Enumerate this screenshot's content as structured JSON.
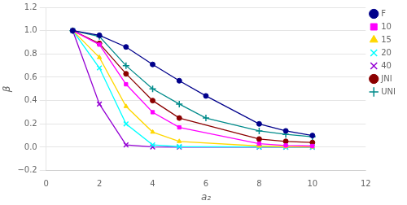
{
  "chart_data": {
    "type": "line",
    "xlabel": "a₂",
    "ylabel": "β",
    "series": [
      {
        "name": "F",
        "color": "#00008B",
        "marker": "circle",
        "x": [
          1,
          2,
          3,
          4,
          5,
          6,
          8,
          9,
          10
        ],
        "values": [
          1.0,
          0.96,
          0.86,
          0.71,
          0.57,
          0.44,
          0.2,
          0.14,
          0.1
        ]
      },
      {
        "name": "10",
        "color": "#FF00FF",
        "marker": "square",
        "x": [
          1,
          2,
          3,
          4,
          5,
          8,
          9,
          10
        ],
        "values": [
          1.0,
          0.88,
          0.54,
          0.3,
          0.17,
          0.03,
          0.015,
          0.01
        ]
      },
      {
        "name": "15",
        "color": "#FFD700",
        "marker": "triangle",
        "x": [
          1,
          2,
          3,
          4,
          5,
          8,
          9,
          10
        ],
        "values": [
          1.0,
          0.77,
          0.35,
          0.13,
          0.05,
          0.01,
          0.005,
          0.003
        ]
      },
      {
        "name": "20",
        "color": "#00FFFF",
        "marker": "x",
        "x": [
          1,
          2,
          3,
          4,
          5,
          8,
          9,
          10
        ],
        "values": [
          1.0,
          0.68,
          0.2,
          0.02,
          0.005,
          0.002,
          0.001,
          0.0005
        ]
      },
      {
        "name": "40",
        "color": "#9400D3",
        "marker": "x",
        "x": [
          1,
          2,
          3,
          4,
          5,
          8,
          9,
          10
        ],
        "values": [
          1.0,
          0.37,
          0.02,
          0.002,
          0.001,
          0.0005,
          0.0002,
          0.0001
        ]
      },
      {
        "name": "JNI",
        "color": "#8B0000",
        "marker": "circle",
        "x": [
          1,
          2,
          3,
          4,
          5,
          8,
          9,
          10
        ],
        "values": [
          1.0,
          0.89,
          0.63,
          0.4,
          0.25,
          0.07,
          0.05,
          0.04
        ]
      },
      {
        "name": "UNI",
        "color": "#008B8B",
        "marker": "plus",
        "x": [
          1,
          2,
          3,
          4,
          5,
          6,
          8,
          9,
          10
        ],
        "values": [
          1.0,
          0.95,
          0.7,
          0.5,
          0.37,
          0.25,
          0.14,
          0.11,
          0.09
        ]
      }
    ],
    "xlim": [
      0,
      12
    ],
    "ylim": [
      -0.2,
      1.2
    ],
    "xticks": [
      0,
      2,
      4,
      6,
      8,
      10,
      12
    ],
    "yticks": [
      {
        "value": -0.2,
        "label": "−0.2"
      },
      {
        "value": 0.0,
        "label": "0.0"
      },
      0.2,
      0.4,
      0.6,
      0.8,
      {
        "value": 1.0,
        "label": "1.0"
      },
      1.2
    ],
    "grid": "y",
    "legend": "right"
  }
}
